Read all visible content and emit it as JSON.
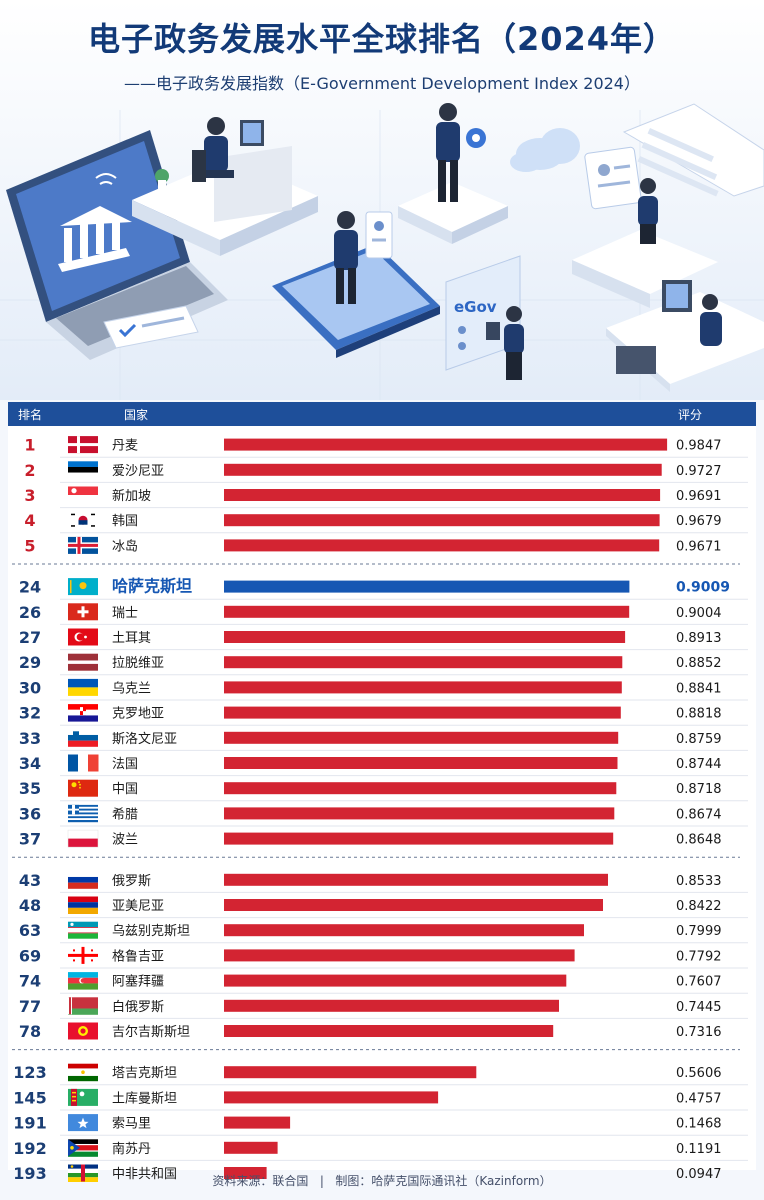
{
  "header": {
    "title": "电子政务发展水平全球排名（2024年）",
    "subtitle": "——电子政务发展指数（E-Government Development Index 2024）"
  },
  "illustration": {
    "egov_label": "eGov"
  },
  "table": {
    "col_rank": "排名",
    "col_country": "国家",
    "col_score": "评分"
  },
  "footer": {
    "source": "资料来源：联合国",
    "separator": "|",
    "credit": "制图：哈萨克国际通讯社（Kazinform）"
  },
  "colors": {
    "bar_default": "#d32432",
    "bar_highlight": "#1657b3",
    "rank_top": "#c81e2b",
    "rank_default": "#1b3e74",
    "header_bg": "#1e4f9a"
  },
  "chart_data": {
    "type": "bar",
    "orientation": "horizontal",
    "xlim": [
      0,
      1
    ],
    "groups": [
      {
        "rows": [
          {
            "rank": "1",
            "country": "丹麦",
            "score": 0.9847,
            "score_label": "0.9847",
            "flag": "denmark"
          },
          {
            "rank": "2",
            "country": "爱沙尼亚",
            "score": 0.9727,
            "score_label": "0.9727",
            "flag": "estonia"
          },
          {
            "rank": "3",
            "country": "新加坡",
            "score": 0.9691,
            "score_label": "0.9691",
            "flag": "singapore"
          },
          {
            "rank": "4",
            "country": "韩国",
            "score": 0.9679,
            "score_label": "0.9679",
            "flag": "south-korea"
          },
          {
            "rank": "5",
            "country": "冰岛",
            "score": 0.9671,
            "score_label": "0.9671",
            "flag": "iceland"
          }
        ]
      },
      {
        "rows": [
          {
            "rank": "24",
            "country": "哈萨克斯坦",
            "score": 0.9009,
            "score_label": "0.9009",
            "flag": "kazakhstan",
            "highlight": true
          },
          {
            "rank": "26",
            "country": "瑞士",
            "score": 0.9004,
            "score_label": "0.9004",
            "flag": "switzerland"
          },
          {
            "rank": "27",
            "country": "土耳其",
            "score": 0.8913,
            "score_label": "0.8913",
            "flag": "turkey"
          },
          {
            "rank": "29",
            "country": "拉脱维亚",
            "score": 0.8852,
            "score_label": "0.8852",
            "flag": "latvia"
          },
          {
            "rank": "30",
            "country": "乌克兰",
            "score": 0.8841,
            "score_label": "0.8841",
            "flag": "ukraine"
          },
          {
            "rank": "32",
            "country": "克罗地亚",
            "score": 0.8818,
            "score_label": "0.8818",
            "flag": "croatia"
          },
          {
            "rank": "33",
            "country": "斯洛文尼亚",
            "score": 0.8759,
            "score_label": "0.8759",
            "flag": "slovenia"
          },
          {
            "rank": "34",
            "country": "法国",
            "score": 0.8744,
            "score_label": "0.8744",
            "flag": "france"
          },
          {
            "rank": "35",
            "country": "中国",
            "score": 0.8718,
            "score_label": "0.8718",
            "flag": "china"
          },
          {
            "rank": "36",
            "country": "希腊",
            "score": 0.8674,
            "score_label": "0.8674",
            "flag": "greece"
          },
          {
            "rank": "37",
            "country": "波兰",
            "score": 0.8648,
            "score_label": "0.8648",
            "flag": "poland"
          }
        ]
      },
      {
        "rows": [
          {
            "rank": "43",
            "country": "俄罗斯",
            "score": 0.8533,
            "score_label": "0.8533",
            "flag": "russia"
          },
          {
            "rank": "48",
            "country": "亚美尼亚",
            "score": 0.8422,
            "score_label": "0.8422",
            "flag": "armenia"
          },
          {
            "rank": "63",
            "country": "乌兹别克斯坦",
            "score": 0.7999,
            "score_label": "0.7999",
            "flag": "uzbekistan"
          },
          {
            "rank": "69",
            "country": "格鲁吉亚",
            "score": 0.7792,
            "score_label": "0.7792",
            "flag": "georgia"
          },
          {
            "rank": "74",
            "country": "阿塞拜疆",
            "score": 0.7607,
            "score_label": "0.7607",
            "flag": "azerbaijan"
          },
          {
            "rank": "77",
            "country": "白俄罗斯",
            "score": 0.7445,
            "score_label": "0.7445",
            "flag": "belarus"
          },
          {
            "rank": "78",
            "country": "吉尔吉斯斯坦",
            "score": 0.7316,
            "score_label": "0.7316",
            "flag": "kyrgyzstan"
          }
        ]
      },
      {
        "rows": [
          {
            "rank": "123",
            "country": "塔吉克斯坦",
            "score": 0.5606,
            "score_label": "0.5606",
            "flag": "tajikistan"
          },
          {
            "rank": "145",
            "country": "土库曼斯坦",
            "score": 0.4757,
            "score_label": "0.4757",
            "flag": "turkmenistan"
          },
          {
            "rank": "191",
            "country": "索马里",
            "score": 0.1468,
            "score_label": "0.1468",
            "flag": "somalia"
          },
          {
            "rank": "192",
            "country": "南苏丹",
            "score": 0.1191,
            "score_label": "0.1191",
            "flag": "south-sudan"
          },
          {
            "rank": "193",
            "country": "中非共和国",
            "score": 0.0947,
            "score_label": "0.0947",
            "flag": "central-african-republic"
          }
        ]
      }
    ]
  }
}
